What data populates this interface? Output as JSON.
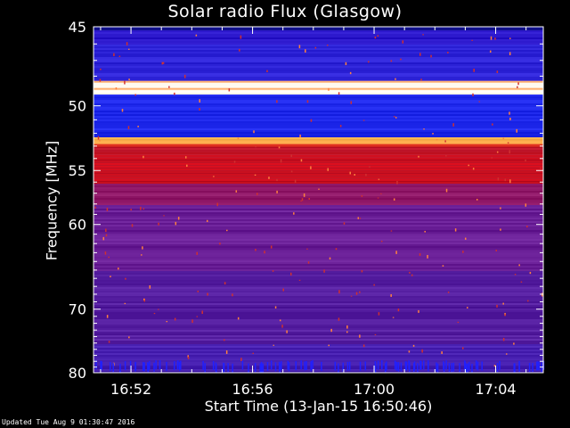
{
  "chart_data": {
    "type": "heatmap",
    "title": "Solar radio Flux (Glasgow)",
    "xlabel": "Start Time (13-Jan-15 16:50:46)",
    "ylabel": "Frequency [MHz]",
    "x_ticks": [
      "16:52",
      "16:56",
      "17:00",
      "17:04"
    ],
    "x_tick_minutes": [
      1.233,
      5.233,
      9.233,
      13.233
    ],
    "xlim_minutes": [
      0,
      14.8
    ],
    "y_ticks": [
      45,
      50,
      55,
      60,
      70,
      80
    ],
    "ylim": [
      45,
      80
    ],
    "y_scale": "inverse",
    "colormap": "blue-purple-red-yellow-white",
    "grid": false,
    "bright_bands_mhz": [
      48.6,
      52.7
    ],
    "red_band_mhz": [
      53.5,
      56.0
    ]
  },
  "footer": "Updated Tue Aug  9 01:30:47 2016"
}
